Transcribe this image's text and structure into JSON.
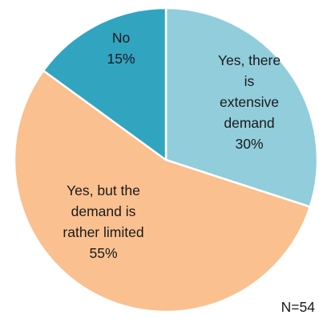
{
  "chart_data": {
    "type": "pie",
    "slices": [
      {
        "label_lines": [
          "Yes, there",
          "is",
          "extensive",
          "demand"
        ],
        "value": 30,
        "value_label": "30%",
        "color": "#92cddc"
      },
      {
        "label_lines": [
          "Yes, but the",
          "demand is",
          "rather limited"
        ],
        "value": 55,
        "value_label": "55%",
        "color": "#fac090"
      },
      {
        "label_lines": [
          "No"
        ],
        "value": 15,
        "value_label": "15%",
        "color": "#31a4c0"
      }
    ],
    "start_angle_deg": 0,
    "direction": "clockwise",
    "note": "N=54"
  }
}
